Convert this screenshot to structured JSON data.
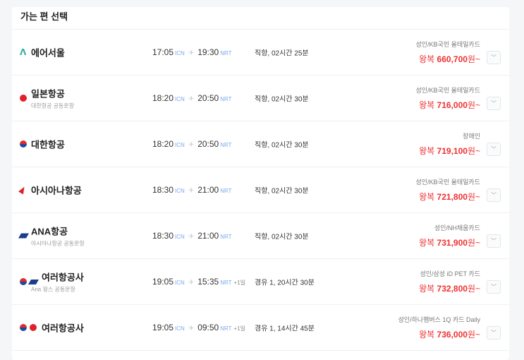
{
  "title": "가는 편 선택",
  "colors": {
    "price": "#f03030",
    "airport_code": "#7aa7f0"
  },
  "flights": [
    {
      "airline": "에어서울",
      "logos": [
        "air-seoul"
      ],
      "sub": "",
      "dep": "17:05",
      "dep_code": "ICN",
      "arr": "19:30",
      "arr_code": "NRT",
      "plus": "",
      "duration": "직항, 02시간 25분",
      "fare": "성인/KB국민 올테일카드",
      "price_prefix": "왕복",
      "price": "660,700",
      "price_suffix": "원~"
    },
    {
      "airline": "일본항공",
      "logos": [
        "jal"
      ],
      "sub": "대한항공 공동운항",
      "dep": "18:20",
      "dep_code": "ICN",
      "arr": "20:50",
      "arr_code": "NRT",
      "plus": "",
      "duration": "직항, 02시간 30분",
      "fare": "성인/KB국민 올테일카드",
      "price_prefix": "왕복",
      "price": "716,000",
      "price_suffix": "원~"
    },
    {
      "airline": "대한항공",
      "logos": [
        "korean-air"
      ],
      "sub": "",
      "dep": "18:20",
      "dep_code": "ICN",
      "arr": "20:50",
      "arr_code": "NRT",
      "plus": "",
      "duration": "직항, 02시간 30분",
      "fare": "장애인",
      "price_prefix": "왕복",
      "price": "719,100",
      "price_suffix": "원~"
    },
    {
      "airline": "아시아나항공",
      "logos": [
        "asiana"
      ],
      "sub": "",
      "dep": "18:30",
      "dep_code": "ICN",
      "arr": "21:00",
      "arr_code": "NRT",
      "plus": "",
      "duration": "직항, 02시간 30분",
      "fare": "성인/KB국민 올테일카드",
      "price_prefix": "왕복",
      "price": "721,800",
      "price_suffix": "원~"
    },
    {
      "airline": "ANA항공",
      "logos": [
        "ana"
      ],
      "sub": "아시아나항공 공동운항",
      "dep": "18:30",
      "dep_code": "ICN",
      "arr": "21:00",
      "arr_code": "NRT",
      "plus": "",
      "duration": "직항, 02시간 30분",
      "fare": "성인/NH채움카드",
      "price_prefix": "왕복",
      "price": "731,900",
      "price_suffix": "원~"
    },
    {
      "airline": "여러항공사",
      "logos": [
        "korean-air",
        "ana"
      ],
      "sub": "Ana 윙스 공동운항",
      "dep": "19:05",
      "dep_code": "ICN",
      "arr": "15:35",
      "arr_code": "NRT",
      "plus": "+1일",
      "duration": "경유 1, 20시간 30분",
      "fare": "성인/삼성 iD PET 카드",
      "price_prefix": "왕복",
      "price": "732,800",
      "price_suffix": "원~"
    },
    {
      "airline": "여러항공사",
      "logos": [
        "korean-air",
        "jal"
      ],
      "sub": "",
      "dep": "19:05",
      "dep_code": "ICN",
      "arr": "09:50",
      "arr_code": "NRT",
      "plus": "+1일",
      "duration": "경유 1, 14시간 45분",
      "fare": "성인/하나멤버스 1Q 카드 Daily",
      "price_prefix": "왕복",
      "price": "736,000",
      "price_suffix": "원~"
    }
  ]
}
